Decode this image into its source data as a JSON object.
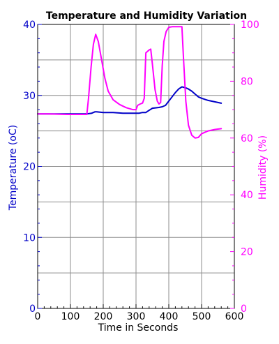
{
  "chart_data": {
    "type": "line",
    "title": "Temperature and Humidity Variation",
    "xlabel": "Time in Seconds",
    "ylabel_left": "Temperature (oC)",
    "ylabel_right": "Humidity (%)",
    "xlim": [
      0,
      600
    ],
    "ylim_left": [
      0,
      40
    ],
    "ylim_right": [
      0,
      100
    ],
    "x_ticks": [
      0,
      100,
      200,
      300,
      400,
      500,
      600
    ],
    "y_ticks_left": [
      0,
      10,
      20,
      30,
      40
    ],
    "y_ticks_right": [
      0,
      20,
      40,
      60,
      80,
      100
    ],
    "grid": true,
    "colors": {
      "temperature": "#0000c8",
      "humidity": "#ff00ff",
      "grid": "#8c8c8c"
    },
    "series": [
      {
        "axis": "left",
        "x": [
          0,
          50,
          100,
          150,
          165,
          175,
          180,
          200,
          230,
          260,
          290,
          310,
          320,
          330,
          340,
          350,
          370,
          380,
          390,
          400,
          410,
          420,
          430,
          440,
          450,
          460,
          470,
          480,
          490,
          500,
          520,
          540,
          560
        ],
        "values": [
          27.4,
          27.4,
          27.4,
          27.4,
          27.5,
          27.7,
          27.7,
          27.6,
          27.6,
          27.5,
          27.5,
          27.5,
          27.6,
          27.6,
          27.9,
          28.2,
          28.3,
          28.4,
          28.6,
          29.2,
          29.8,
          30.4,
          30.9,
          31.2,
          31.1,
          30.9,
          30.6,
          30.2,
          29.8,
          29.6,
          29.3,
          29.1,
          28.9
        ]
      },
      {
        "axis": "right",
        "x": [
          0,
          30,
          60,
          90,
          120,
          150,
          155,
          163,
          170,
          177,
          185,
          195,
          205,
          215,
          230,
          250,
          270,
          290,
          300,
          305,
          313,
          320,
          325,
          330,
          340,
          345,
          350,
          358,
          365,
          370,
          375,
          380,
          385,
          392,
          400,
          410,
          420,
          435,
          440,
          445,
          452,
          460,
          470,
          480,
          490,
          500,
          520,
          540,
          560
        ],
        "values": [
          68.5,
          68.5,
          68.4,
          68.3,
          68.3,
          68.3,
          74,
          85,
          93,
          96.5,
          94,
          87.5,
          81,
          76.5,
          73.5,
          71.8,
          70.7,
          70,
          70,
          71.5,
          72,
          72.3,
          74,
          90,
          91,
          91.3,
          86,
          77,
          73,
          72,
          72.5,
          85.5,
          94,
          97.5,
          99,
          99.2,
          99.2,
          99.2,
          99.2,
          88,
          73,
          64.5,
          61,
          60,
          60.2,
          61.5,
          62.5,
          63,
          63.3
        ]
      }
    ]
  }
}
